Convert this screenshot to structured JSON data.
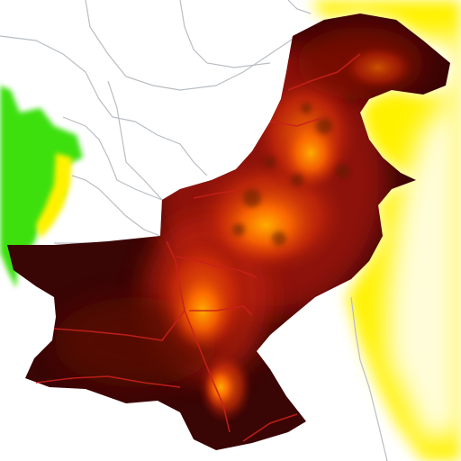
{
  "map": {
    "colors": {
      "background": "#ffffff",
      "border_lines": "#b9bec4",
      "neighbor_yellow": "#fff200",
      "neighbor_green": "#33dd11",
      "heat_dark": "#3a0505",
      "heat_mid": "#c0200a",
      "heat_hot": "#ff5a00",
      "heat_peak": "#ffb000",
      "internal_border": "#c8201a"
    },
    "regions": [
      "neighbor-east",
      "neighbor-west",
      "heat-country",
      "neighbor-north-borders"
    ]
  }
}
